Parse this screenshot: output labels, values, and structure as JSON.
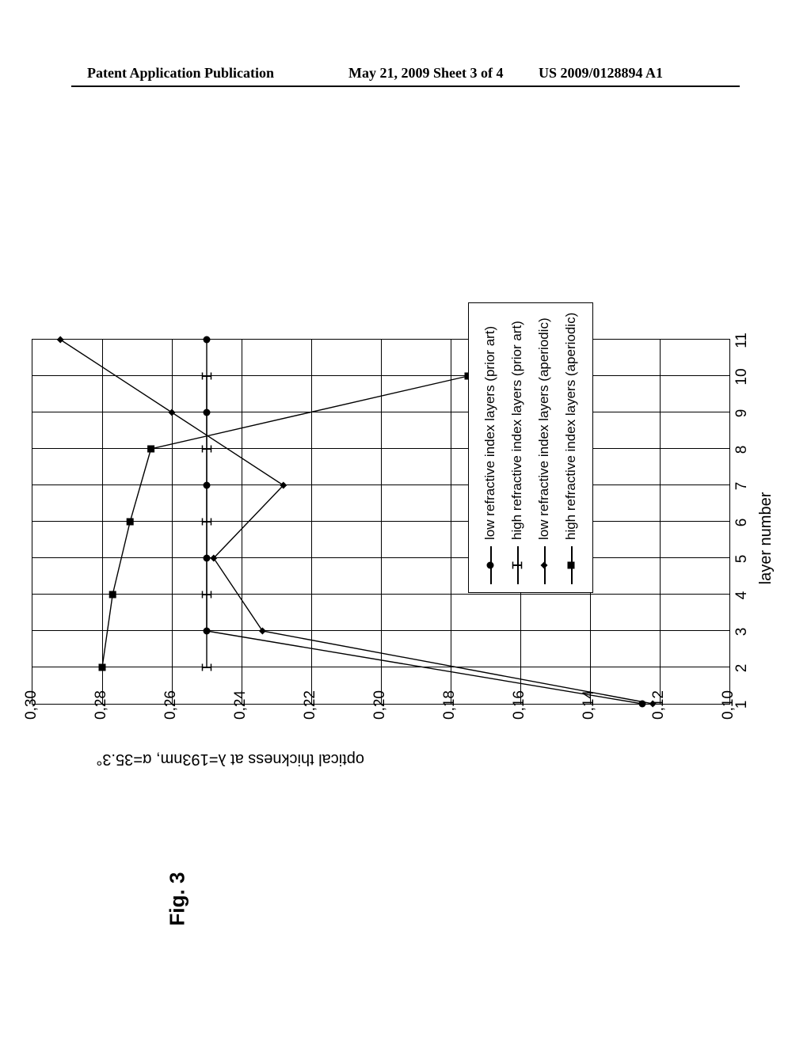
{
  "header": {
    "left": "Patent Application Publication",
    "mid": "May 21, 2009  Sheet 3 of 4",
    "right": "US 2009/0128894 A1"
  },
  "figure_label": "Fig. 3",
  "chart": {
    "type": "line",
    "xlabel": "layer number",
    "ylabel": "optical thickness at λ=193nm, α=35.3°",
    "xlim": [
      1,
      11
    ],
    "ylim": [
      0.1,
      0.3
    ],
    "xtick_step": 1,
    "ytick_step": 0.02,
    "yticks": [
      "0,10",
      "0,12",
      "0,14",
      "0,16",
      "0,18",
      "0,20",
      "0,22",
      "0,24",
      "0,26",
      "0,28",
      "0,30"
    ],
    "xticks": [
      "1",
      "2",
      "3",
      "4",
      "5",
      "6",
      "7",
      "8",
      "9",
      "10",
      "11"
    ],
    "background_color": "#ffffff",
    "grid_color": "#000000",
    "line_color": "#000000",
    "line_width": 1.4,
    "marker_size": 9,
    "series": [
      {
        "name": "low refractive index layers (prior art)",
        "marker": "circle-filled",
        "x": [
          1,
          3,
          5,
          7,
          9,
          11
        ],
        "y": [
          0.125,
          0.25,
          0.25,
          0.25,
          0.25,
          0.25
        ]
      },
      {
        "name": "high refractive index layers (prior art)",
        "marker": "tick",
        "x": [
          2,
          4,
          6,
          8,
          10
        ],
        "y": [
          0.25,
          0.25,
          0.25,
          0.25,
          0.25
        ]
      },
      {
        "name": "low refractive index layers (aperiodic)",
        "marker": "diamond-filled",
        "x": [
          1,
          3,
          5,
          7,
          9,
          11
        ],
        "y": [
          0.122,
          0.234,
          0.248,
          0.228,
          0.26,
          0.292
        ]
      },
      {
        "name": "high refractive index layers (aperiodic)",
        "marker": "square-filled",
        "x": [
          2,
          4,
          6,
          8,
          10
        ],
        "y": [
          0.28,
          0.277,
          0.272,
          0.266,
          0.175
        ]
      }
    ],
    "legend": {
      "position": "inside-lower-middle"
    }
  }
}
